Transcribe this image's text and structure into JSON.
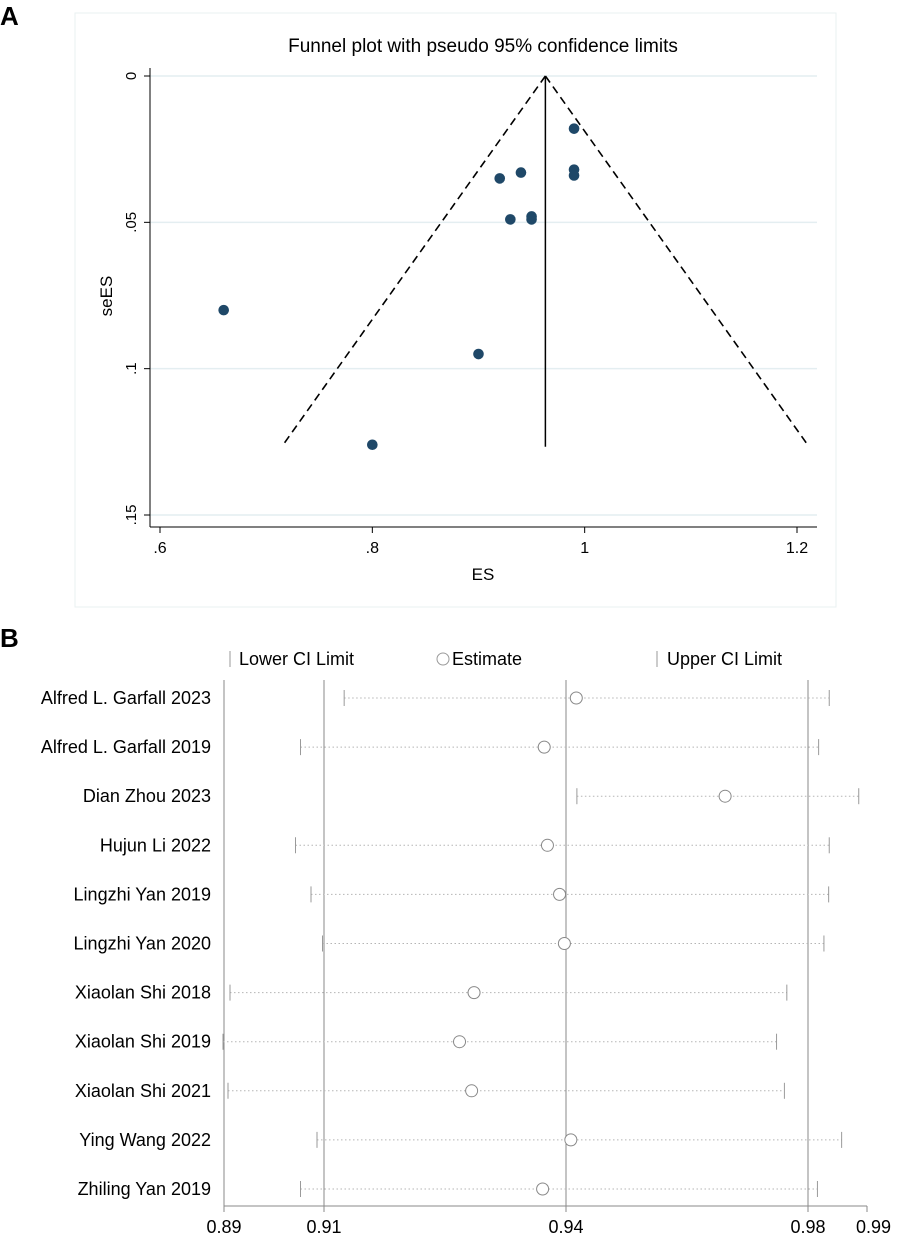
{
  "panels": {
    "a_label": "A",
    "b_label": "B"
  },
  "chart_data": [
    {
      "type": "scatter",
      "subtype": "funnel",
      "title": "Funnel plot with pseudo 95% confidence limits",
      "xlabel": "ES",
      "ylabel": "seES",
      "xlim": [
        0.6,
        1.2
      ],
      "ylim": [
        0,
        0.15
      ],
      "y_reversed": true,
      "x_ticks": [
        0.6,
        0.8,
        1.0,
        1.2
      ],
      "x_tick_labels": [
        ".6",
        ".8",
        "1",
        "1.2"
      ],
      "y_ticks": [
        0,
        0.05,
        0.1,
        0.15
      ],
      "y_tick_labels": [
        "0",
        ".05",
        ".1",
        ".15"
      ],
      "pooled_estimate": 0.963,
      "funnel_limits": {
        "apex": [
          0.963,
          0
        ],
        "left_bottom": [
          0.716,
          0.126
        ],
        "right_bottom": [
          1.21,
          0.126
        ]
      },
      "points": [
        {
          "es": 0.99,
          "se": 0.018
        },
        {
          "es": 0.99,
          "se": 0.032
        },
        {
          "es": 0.99,
          "se": 0.034
        },
        {
          "es": 0.94,
          "se": 0.033
        },
        {
          "es": 0.92,
          "se": 0.035
        },
        {
          "es": 0.95,
          "se": 0.048
        },
        {
          "es": 0.95,
          "se": 0.049
        },
        {
          "es": 0.93,
          "se": 0.049
        },
        {
          "es": 0.66,
          "se": 0.08
        },
        {
          "es": 0.9,
          "se": 0.095
        },
        {
          "es": 0.8,
          "se": 0.126
        }
      ]
    },
    {
      "type": "forest",
      "legend": {
        "lower": "Lower CI Limit",
        "estimate": "Estimate",
        "upper": "Upper CI Limit"
      },
      "xlim": [
        0.89,
        0.99
      ],
      "x_ticks": [
        0.89,
        0.91,
        0.94,
        0.98,
        0.99
      ],
      "x_tick_labels": [
        "0.89",
        "0.91",
        "0.94",
        "0.98",
        "0.99"
      ],
      "ref_lines": [
        0.91,
        0.94,
        0.98
      ],
      "studies": [
        {
          "name": "Alfred L. Garfall 2023",
          "lower": 0.9125,
          "estimate": 0.9417,
          "upper": 0.9836
        },
        {
          "name": "Alfred L. Garfall 2019",
          "lower": 0.9053,
          "estimate": 0.9373,
          "upper": 0.9818
        },
        {
          "name": "Dian Zhou 2023",
          "lower": 0.9418,
          "estimate": 0.9663,
          "upper": 0.9886
        },
        {
          "name": "Hujun Li 2022",
          "lower": 0.9043,
          "estimate": 0.9377,
          "upper": 0.9836
        },
        {
          "name": "Lingzhi Yan 2019",
          "lower": 0.9074,
          "estimate": 0.9392,
          "upper": 0.9835
        },
        {
          "name": "Lingzhi Yan 2020",
          "lower": 0.9097,
          "estimate": 0.9398,
          "upper": 0.9827
        },
        {
          "name": "Xiaolan Shi 2018",
          "lower": 0.8912,
          "estimate": 0.9286,
          "upper": 0.9765
        },
        {
          "name": "Xiaolan Shi 2019",
          "lower": 0.8898,
          "estimate": 0.9268,
          "upper": 0.9748
        },
        {
          "name": "Xiaolan Shi 2021",
          "lower": 0.8908,
          "estimate": 0.9283,
          "upper": 0.9761
        },
        {
          "name": "Ying Wang 2022",
          "lower": 0.9086,
          "estimate": 0.9408,
          "upper": 0.9857
        },
        {
          "name": "Zhiling Yan 2019",
          "lower": 0.9053,
          "estimate": 0.9371,
          "upper": 0.9816
        }
      ]
    }
  ]
}
